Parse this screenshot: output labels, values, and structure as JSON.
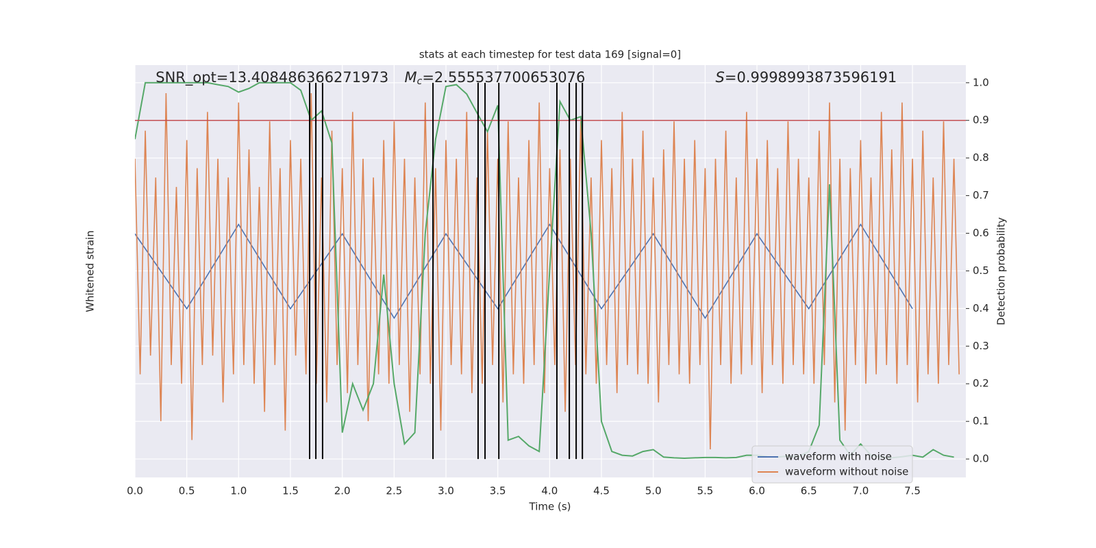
{
  "chart_data": {
    "type": "line",
    "title": "stats at each timestep for test data 169 [signal=0]",
    "xlabel": "Time (s)",
    "ylabel": "Whitened strain",
    "y2label": "Detection probability",
    "annotations": [
      {
        "symbol": "",
        "sub": "",
        "text": "SNR_opt=13.408486366271973",
        "x": 0.2
      },
      {
        "symbol": "M",
        "sub": "c",
        "text": "=2.555537700653076",
        "x": 2.6
      },
      {
        "symbol": "S",
        "sub": "",
        "text": "=0.9998993873596191",
        "x": 5.6
      }
    ],
    "xlim": [
      0,
      8.015
    ],
    "xticks": [
      {
        "value": 0,
        "label": "0.0"
      },
      0.5,
      {
        "value": 1,
        "label": "1.0"
      },
      1.5,
      {
        "value": 2,
        "label": "2.0"
      },
      2.5,
      {
        "value": 3,
        "label": "3.0"
      },
      3.5,
      {
        "value": 4,
        "label": "4.0"
      },
      4.5,
      {
        "value": 5,
        "label": "5.0"
      },
      5.5,
      {
        "value": 6,
        "label": "6.0"
      },
      6.5,
      {
        "value": 7,
        "label": "7.0"
      },
      7.5
    ],
    "ylim": [
      -1.1,
      1.1
    ],
    "y2lim": [
      -0.049,
      1.047
    ],
    "y2ticks": [
      {
        "value": 0,
        "label": "0.0"
      },
      0.1,
      0.2,
      0.3,
      0.4,
      0.5,
      0.6,
      0.7,
      0.8,
      0.9,
      {
        "value": 1,
        "label": "1.0"
      }
    ],
    "grid": true,
    "legend": "lower right",
    "threshold": {
      "value": 0.9,
      "color": "#c44e52"
    },
    "vlines": {
      "color": "#000000",
      "values": [
        1.685,
        1.745,
        1.81,
        2.875,
        3.31,
        3.377,
        3.51,
        4.07,
        4.19,
        4.256,
        4.316
      ]
    },
    "x": [
      0,
      0.05,
      0.1,
      0.15,
      0.2,
      0.25,
      0.3,
      0.35,
      0.4,
      0.45,
      0.5,
      0.55,
      0.6,
      0.65,
      0.7,
      0.75,
      0.8,
      0.85,
      0.9,
      0.95,
      1,
      1.05,
      1.1,
      1.15,
      1.2,
      1.25,
      1.3,
      1.35,
      1.4,
      1.45,
      1.5,
      1.55,
      1.6,
      1.65,
      1.7,
      1.75,
      1.8,
      1.85,
      1.9,
      1.95,
      2,
      2.05,
      2.1,
      2.15,
      2.2,
      2.25,
      2.3,
      2.35,
      2.4,
      2.45,
      2.5,
      2.55,
      2.6,
      2.65,
      2.7,
      2.75,
      2.8,
      2.85,
      2.9,
      2.95,
      3,
      3.05,
      3.1,
      3.15,
      3.2,
      3.25,
      3.3,
      3.35,
      3.4,
      3.45,
      3.5,
      3.55,
      3.6,
      3.65,
      3.7,
      3.75,
      3.8,
      3.85,
      3.9,
      3.95,
      4,
      4.05,
      4.1,
      4.15,
      4.2,
      4.25,
      4.3,
      4.35,
      4.4,
      4.45,
      4.5,
      4.55,
      4.6,
      4.65,
      4.7,
      4.75,
      4.8,
      4.85,
      4.9,
      4.95,
      5,
      5.05,
      5.1,
      5.15,
      5.2,
      5.25,
      5.3,
      5.35,
      5.4,
      5.45,
      5.5,
      5.55,
      5.6,
      5.65,
      5.7,
      5.75,
      5.8,
      5.85,
      5.9,
      5.95,
      6,
      6.05,
      6.1,
      6.15,
      6.2,
      6.25,
      6.3,
      6.35,
      6.4,
      6.45,
      6.5,
      6.55,
      6.6,
      6.65,
      6.7,
      6.75,
      6.8,
      6.85,
      6.9,
      6.95,
      7,
      7.05,
      7.1,
      7.15,
      7.2,
      7.25,
      7.3,
      7.35,
      7.4,
      7.45,
      7.5,
      7.55,
      7.6,
      7.65,
      7.7,
      7.75,
      7.8,
      7.85,
      7.9,
      7.95
    ],
    "series": [
      {
        "name": "waveform with noise",
        "color": "#4c72b0",
        "x": [
          0,
          0.5,
          1,
          1.5,
          2,
          2.5,
          3,
          3.5,
          4,
          4.5,
          5,
          5.5,
          6,
          6.5,
          7,
          7.5
        ],
        "values": [
          0.2,
          -0.2,
          0.25,
          -0.2,
          0.2,
          -0.25,
          0.2,
          -0.2,
          0.25,
          -0.2,
          0.2,
          -0.25,
          0.2,
          -0.2,
          0.25,
          -0.2
        ]
      },
      {
        "name": "waveform without noise",
        "color": "#dd8452",
        "values": [
          0.6,
          -0.55,
          0.75,
          -0.45,
          0.5,
          -0.8,
          0.95,
          -0.5,
          0.45,
          -0.6,
          0.7,
          -0.9,
          0.55,
          -0.5,
          0.85,
          -0.45,
          0.6,
          -0.7,
          0.5,
          -0.55,
          0.9,
          -0.5,
          0.65,
          -0.6,
          0.45,
          -0.75,
          0.8,
          -0.5,
          0.55,
          -0.85,
          0.7,
          -0.45,
          0.6,
          -0.55,
          0.95,
          -0.6,
          0.5,
          -0.7,
          0.75,
          -0.5,
          0.55,
          -0.65,
          0.85,
          -0.5,
          0.6,
          -0.8,
          0.5,
          -0.55,
          0.7,
          -0.6,
          0.8,
          -0.5,
          0.6,
          -0.75,
          0.5,
          -0.55,
          0.9,
          -0.6,
          0.55,
          -0.85,
          0.7,
          -0.5,
          0.6,
          -0.55,
          0.85,
          -0.65,
          0.5,
          -0.6,
          0.75,
          -0.5,
          0.6,
          -0.7,
          0.8,
          -0.55,
          0.5,
          -0.6,
          0.7,
          -0.5,
          0.9,
          -0.65,
          0.55,
          -0.5,
          0.65,
          -0.75,
          0.6,
          -0.5,
          0.8,
          -0.55,
          0.5,
          -0.6,
          0.7,
          -0.5,
          0.55,
          -0.65,
          0.85,
          -0.5,
          0.6,
          -0.55,
          0.75,
          -0.6,
          0.5,
          -0.7,
          0.65,
          -0.5,
          0.8,
          -0.55,
          0.6,
          -0.6,
          0.7,
          -0.5,
          0.55,
          -0.95,
          0.6,
          -0.5,
          0.75,
          -0.6,
          0.5,
          -0.55,
          0.85,
          -0.5,
          0.6,
          -0.65,
          0.7,
          -0.5,
          0.55,
          -0.6,
          0.8,
          -0.5,
          0.6,
          -0.55,
          0.5,
          -0.6,
          0.75,
          -0.5,
          0.9,
          -0.7,
          0.6,
          -0.85,
          0.55,
          -0.5,
          0.7,
          -0.6,
          0.5,
          -0.55,
          0.85,
          -0.5,
          0.65,
          -0.6,
          0.9,
          -0.5,
          0.6,
          -0.7,
          0.75,
          -0.55,
          0.5,
          -0.6,
          0.8,
          -0.5,
          0.6,
          -0.55
        ]
      },
      {
        "color": "#55a868",
        "axis": "y2",
        "x": [
          0,
          0.1,
          0.2,
          0.3,
          0.4,
          0.5,
          0.6,
          0.7,
          0.8,
          0.9,
          1,
          1.1,
          1.2,
          1.3,
          1.4,
          1.5,
          1.6,
          1.7,
          1.8,
          1.9,
          2,
          2.1,
          2.2,
          2.3,
          2.4,
          2.5,
          2.6,
          2.7,
          2.8,
          2.9,
          3,
          3.1,
          3.2,
          3.3,
          3.4,
          3.5,
          3.6,
          3.7,
          3.8,
          3.9,
          4,
          4.1,
          4.2,
          4.3,
          4.4,
          4.5,
          4.6,
          4.7,
          4.8,
          4.9,
          5,
          5.1,
          5.2,
          5.3,
          5.4,
          5.5,
          5.6,
          5.7,
          5.8,
          5.9,
          6,
          6.1,
          6.2,
          6.3,
          6.4,
          6.5,
          6.6,
          6.7,
          6.8,
          6.9,
          7,
          7.1,
          7.2,
          7.3,
          7.4,
          7.5,
          7.6,
          7.7,
          7.8,
          7.9
        ],
        "values": [
          0.85,
          1,
          1,
          1,
          1,
          1,
          1,
          1,
          0.995,
          0.99,
          0.975,
          0.985,
          1,
          1,
          1,
          1,
          0.98,
          0.9,
          0.925,
          0.84,
          0.07,
          0.2,
          0.13,
          0.2,
          0.49,
          0.2,
          0.04,
          0.07,
          0.6,
          0.85,
          0.99,
          0.995,
          0.97,
          0.92,
          0.87,
          0.94,
          0.05,
          0.06,
          0.035,
          0.02,
          0.5,
          0.95,
          0.9,
          0.91,
          0.6,
          0.1,
          0.02,
          0.01,
          0.008,
          0.02,
          0.025,
          0.005,
          0.003,
          0.002,
          0.003,
          0.004,
          0.004,
          0.003,
          0.004,
          0.01,
          0.01,
          0.006,
          0.005,
          0.008,
          0.006,
          0.02,
          0.09,
          0.73,
          0.05,
          0.01,
          0.04,
          0.01,
          0.005,
          0.003,
          0.006,
          0.01,
          0.005,
          0.025,
          0.01,
          0.005
        ]
      }
    ]
  }
}
